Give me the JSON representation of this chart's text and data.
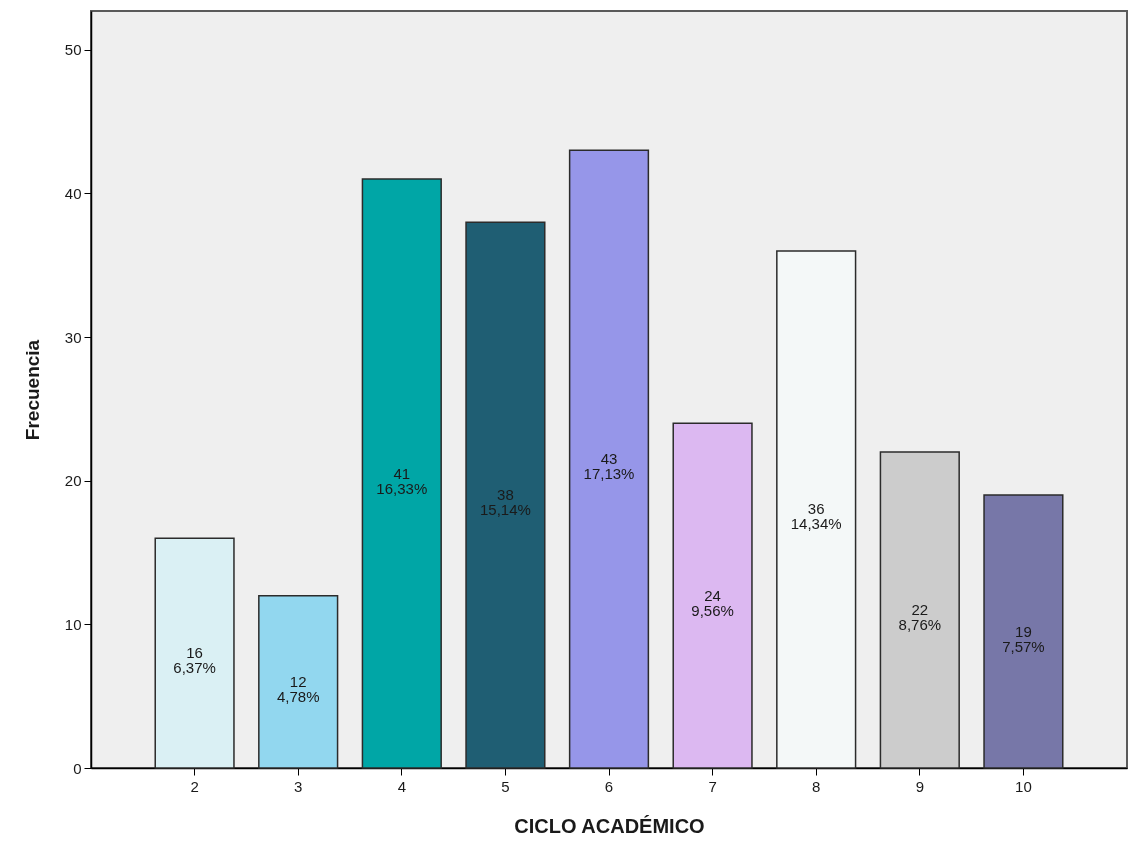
{
  "chart_data": {
    "type": "bar",
    "xlabel": "CICLO ACADÉMICO",
    "ylabel": "Frecuencia",
    "categories": [
      "2",
      "3",
      "4",
      "5",
      "6",
      "7",
      "8",
      "9",
      "10"
    ],
    "values": [
      16,
      12,
      41,
      38,
      43,
      24,
      36,
      22,
      19
    ],
    "colors": [
      "#daf0f4",
      "#92d7ef",
      "#00a6a6",
      "#1f5e73",
      "#9696e9",
      "#dcb8f1",
      "#f4f8f8",
      "#cccccc",
      "#7777a8"
    ],
    "value_labels": [
      "16\n6,37%",
      "12\n4,78%",
      "41\n16,33%",
      "38\n15,14%",
      "43\n17,13%",
      "24\n9,56%",
      "36\n14,34%",
      "22\n8,76%",
      "19\n7,57%"
    ],
    "ylim": [
      0,
      52.7
    ],
    "yticks": [
      0,
      10,
      20,
      30,
      40,
      50
    ],
    "grid": false
  }
}
